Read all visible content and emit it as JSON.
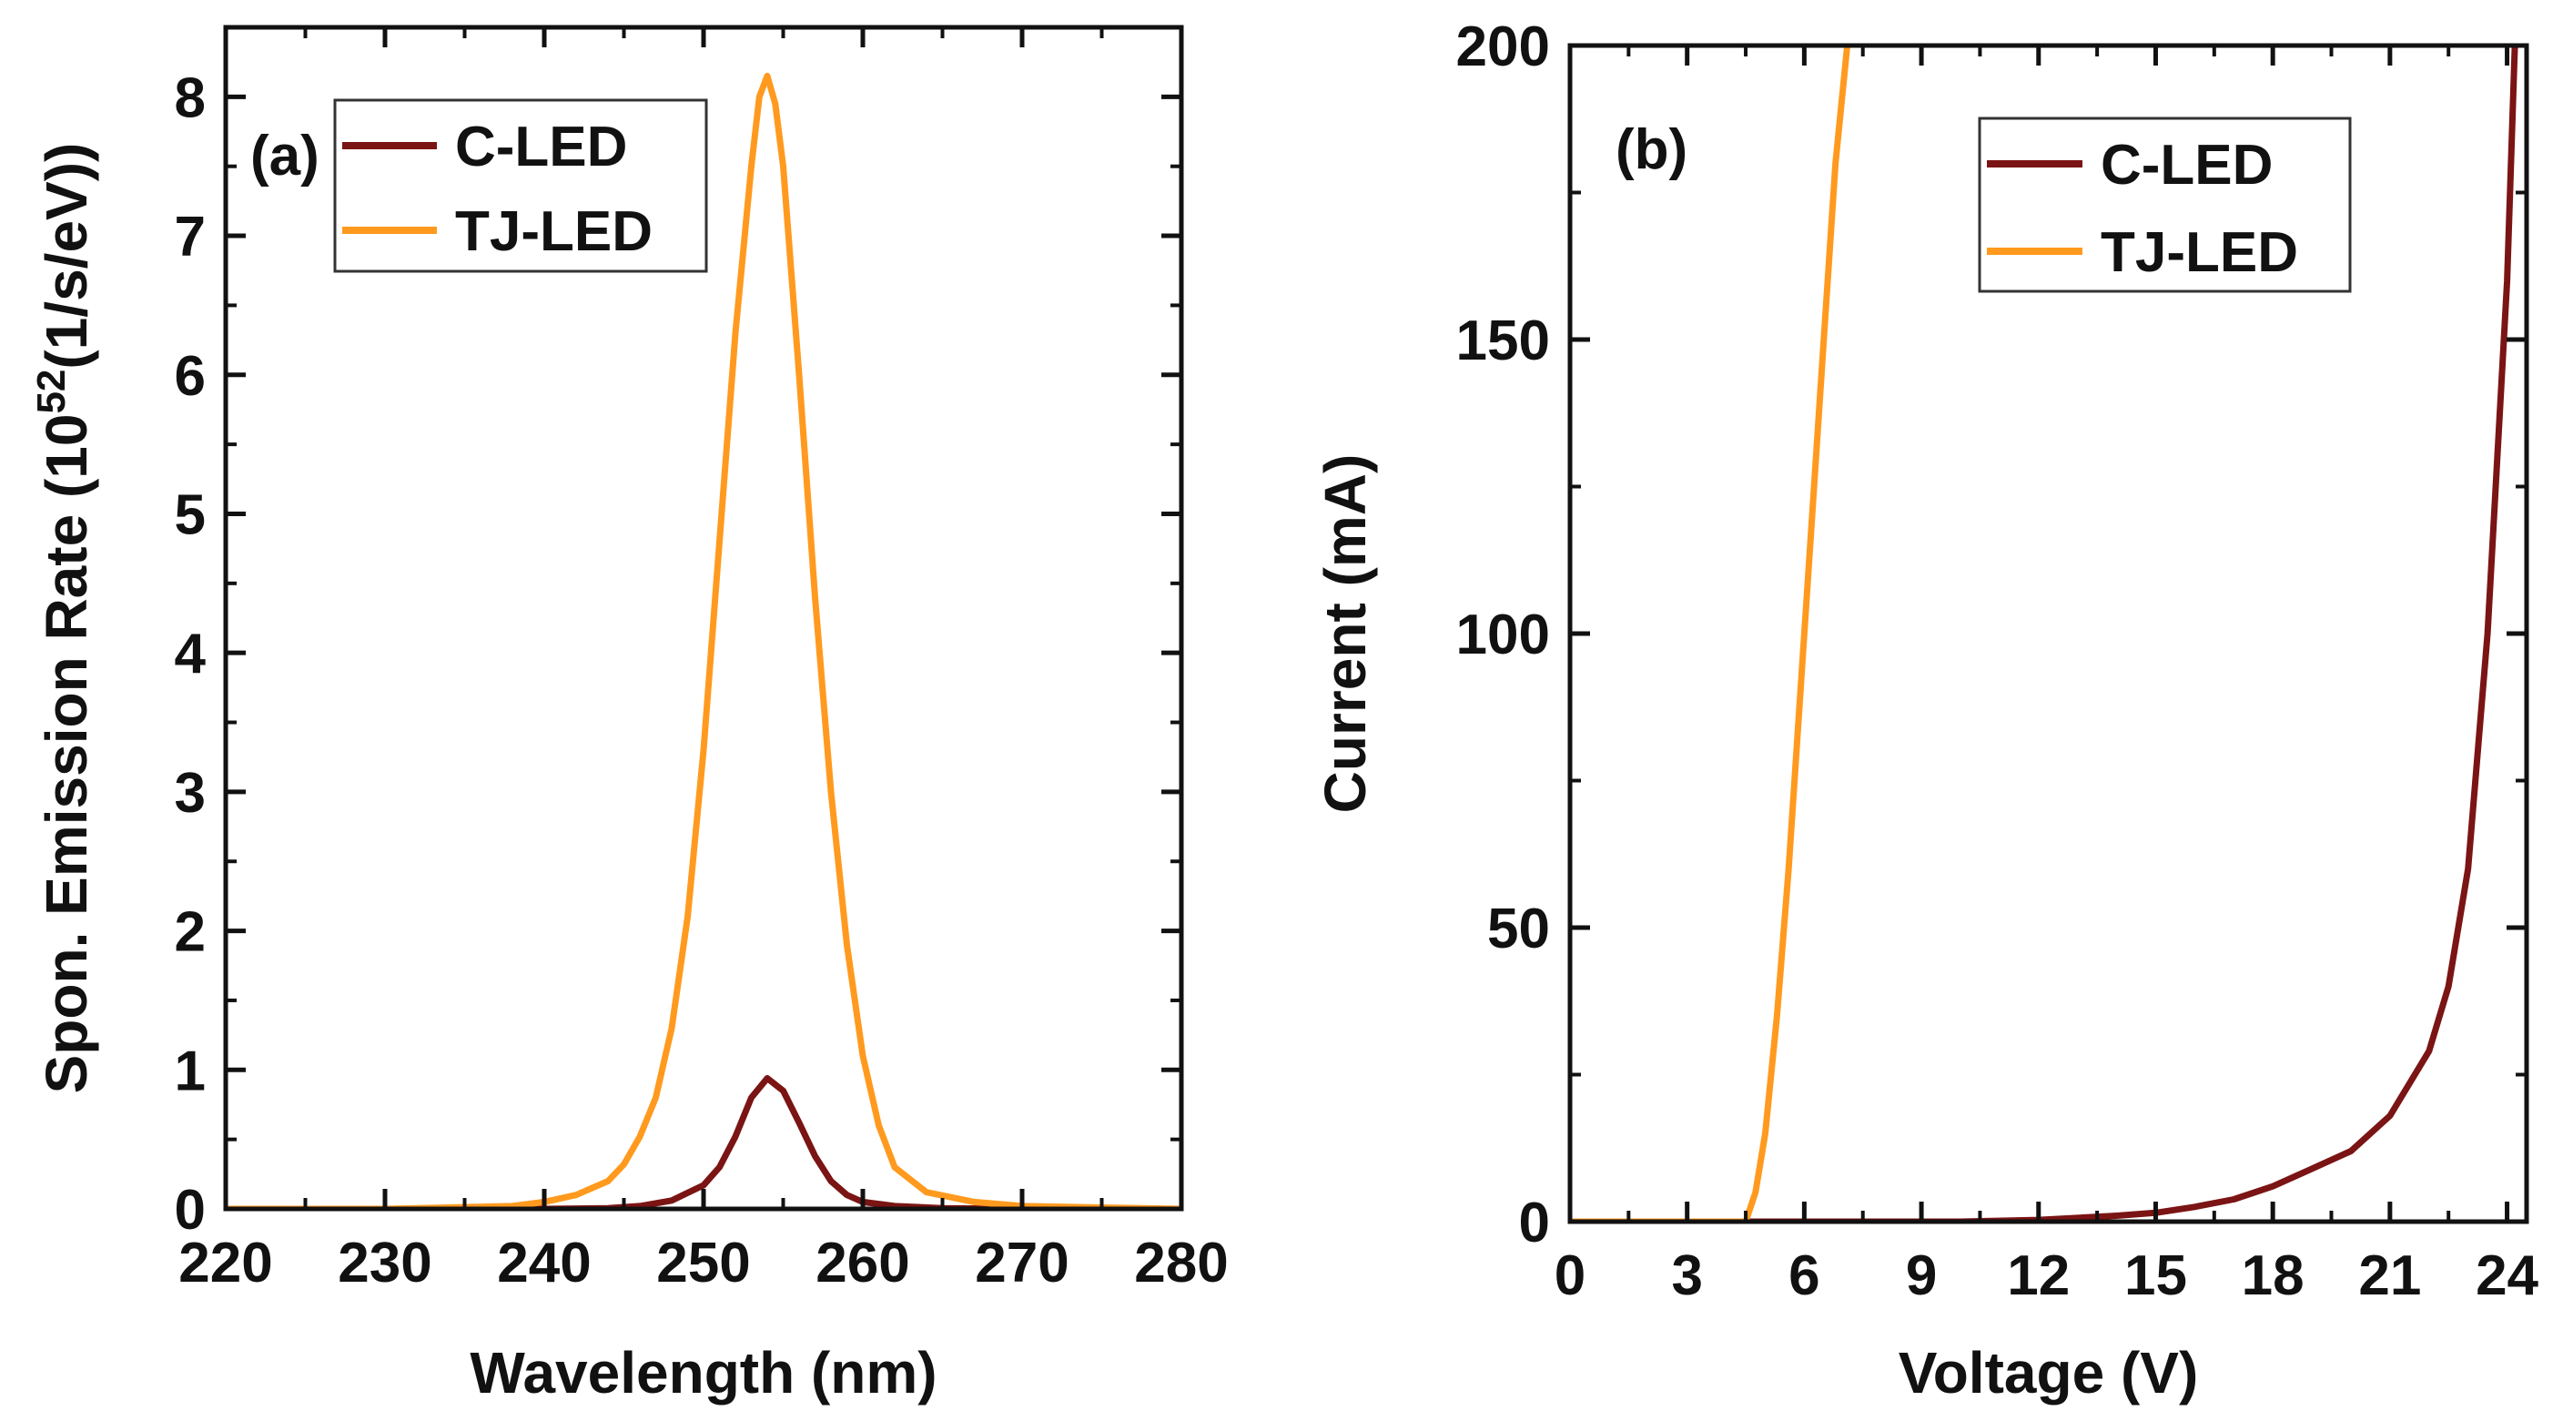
{
  "chart_data": [
    {
      "type": "line",
      "panel_label": "(a)",
      "xlabel": "Wavelength (nm)",
      "ylabel_main": "Spon. Emission Rate (10",
      "ylabel_sup": "52",
      "ylabel_tail": "(1/s/eV))",
      "xlim": [
        220,
        280
      ],
      "ylim": [
        0,
        8.5
      ],
      "xticks": [
        220,
        230,
        240,
        250,
        260,
        270,
        280
      ],
      "yticks": [
        0,
        1,
        2,
        3,
        4,
        5,
        6,
        7,
        8
      ],
      "grid": false,
      "legend_position": "top-left",
      "series": [
        {
          "name": "C-LED",
          "color": "#7b1414",
          "x": [
            220,
            230,
            240,
            244,
            246,
            248,
            250,
            251,
            252,
            253,
            254,
            255,
            256,
            257,
            258,
            259,
            260,
            262,
            265,
            270,
            280
          ],
          "y": [
            0,
            0,
            0,
            0.005,
            0.02,
            0.06,
            0.17,
            0.3,
            0.52,
            0.8,
            0.94,
            0.85,
            0.62,
            0.38,
            0.2,
            0.1,
            0.05,
            0.02,
            0.005,
            0,
            0
          ]
        },
        {
          "name": "TJ-LED",
          "color": "#ff9a1f",
          "x": [
            220,
            230,
            238,
            240,
            242,
            244,
            245,
            246,
            247,
            248,
            249,
            250,
            251,
            252,
            253,
            253.5,
            254,
            254.5,
            255,
            256,
            257,
            258,
            259,
            260,
            261,
            262,
            264,
            267,
            270,
            275,
            280
          ],
          "y": [
            0,
            0,
            0.02,
            0.05,
            0.1,
            0.2,
            0.32,
            0.52,
            0.8,
            1.3,
            2.1,
            3.3,
            4.8,
            6.3,
            7.5,
            8.0,
            8.15,
            7.95,
            7.5,
            6.0,
            4.4,
            3.0,
            1.9,
            1.1,
            0.6,
            0.3,
            0.12,
            0.05,
            0.02,
            0.01,
            0
          ]
        }
      ]
    },
    {
      "type": "line",
      "panel_label": "(b)",
      "xlabel": "Voltage (V)",
      "ylabel": "Current (mA)",
      "xlim": [
        0,
        24.5
      ],
      "ylim": [
        0,
        200
      ],
      "xticks": [
        0,
        3,
        6,
        9,
        12,
        15,
        18,
        21,
        24
      ],
      "yticks": [
        0,
        50,
        100,
        150,
        200
      ],
      "grid": false,
      "legend_position": "top-right",
      "series": [
        {
          "name": "C-LED",
          "color": "#7b1414",
          "x": [
            0,
            10,
            12,
            14,
            15,
            16,
            17,
            18,
            19,
            20,
            21,
            22,
            22.5,
            23,
            23.5,
            24,
            24.2
          ],
          "y": [
            0,
            0,
            0.3,
            1,
            1.5,
            2.5,
            3.8,
            6,
            9,
            12,
            18,
            29,
            40,
            60,
            100,
            160,
            200
          ]
        },
        {
          "name": "TJ-LED",
          "color": "#ff9a1f",
          "x": [
            0,
            4.5,
            4.75,
            5.0,
            5.3,
            5.6,
            5.9,
            6.2,
            6.5,
            6.8,
            7.1
          ],
          "y": [
            0,
            0,
            5,
            15,
            35,
            60,
            90,
            120,
            150,
            180,
            200
          ]
        }
      ]
    }
  ]
}
